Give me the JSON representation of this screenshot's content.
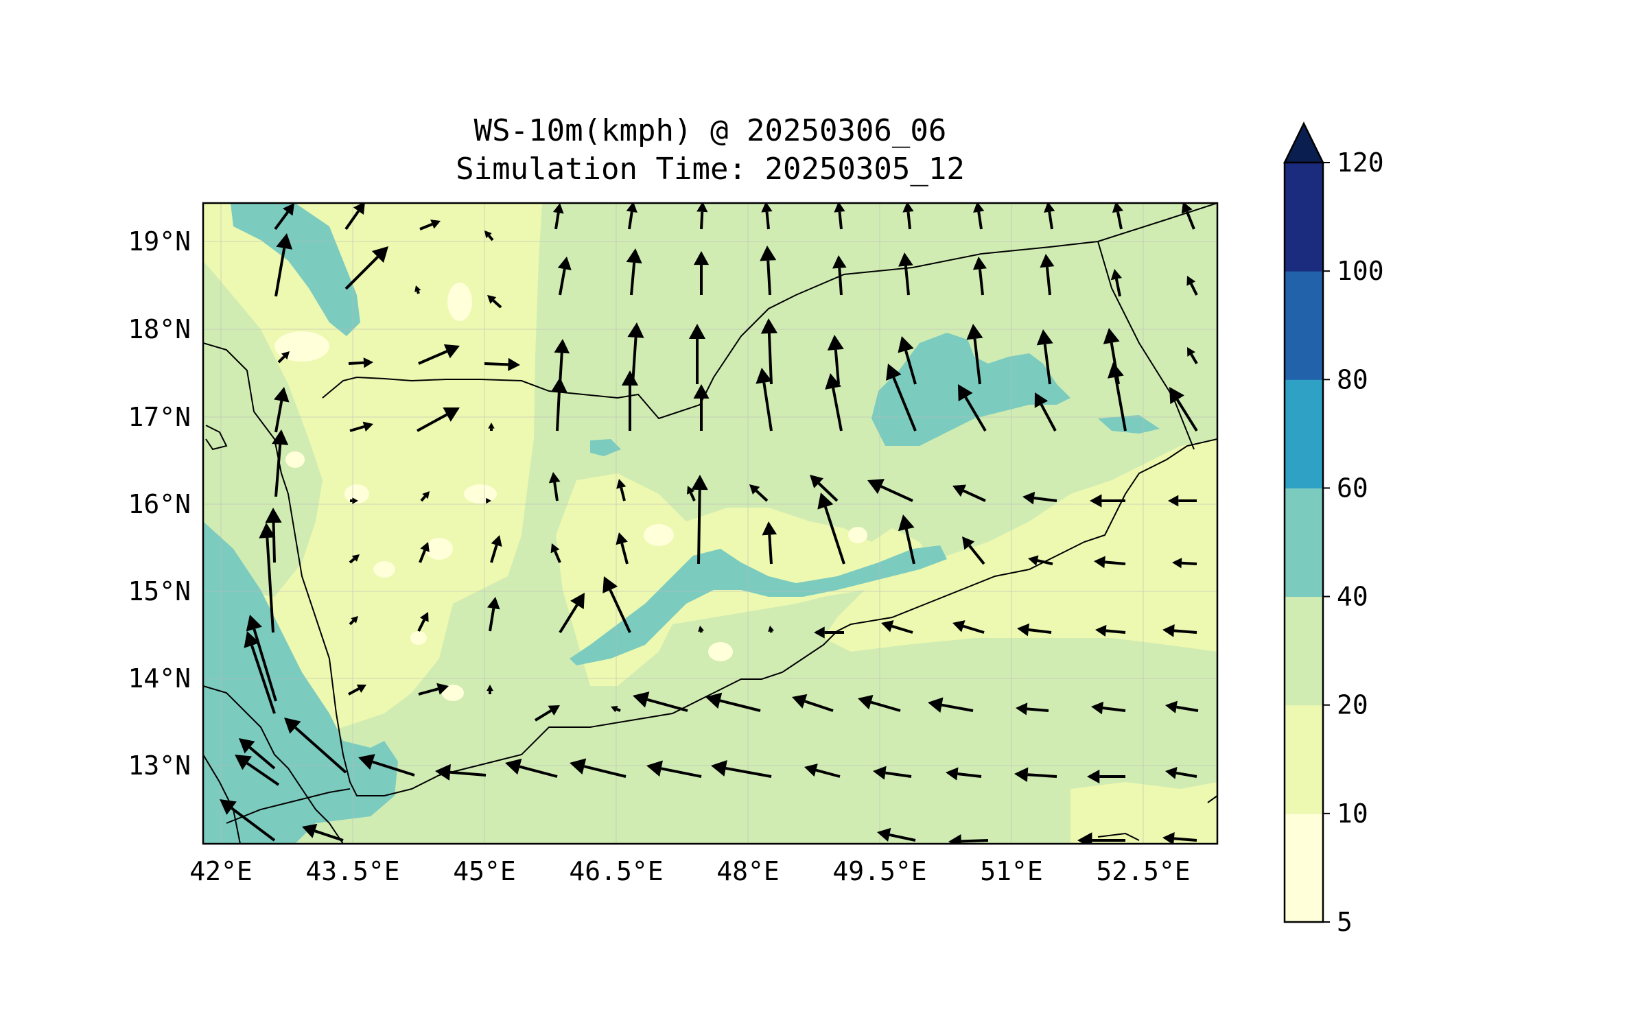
{
  "title": {
    "line1": "WS-10m(kmph) @ 20250306_06",
    "line2": "Simulation Time: 20250305_12"
  },
  "map": {
    "lon_range": [
      41.7,
      53.2
    ],
    "lat_range": [
      12.1,
      19.45
    ],
    "lon_ticks": [
      "42°E",
      "43.5°E",
      "45°E",
      "46.5°E",
      "48°E",
      "49.5°E",
      "51°E",
      "52.5°E"
    ],
    "lon_tick_values": [
      42,
      43.5,
      45,
      46.5,
      48,
      49.5,
      51,
      52.5
    ],
    "lat_ticks": [
      "19°N",
      "18°N",
      "17°N",
      "16°N",
      "15°N",
      "14°N",
      "13°N"
    ],
    "lat_tick_values": [
      19,
      18,
      17,
      16,
      15,
      14,
      13
    ],
    "gridlines": true,
    "coastlines": true,
    "borders": true,
    "vectors": "wind arrows (10m wind direction)"
  },
  "colorbar": {
    "levels": [
      "5",
      "10",
      "20",
      "40",
      "60",
      "80",
      "100",
      "120"
    ],
    "colors": [
      "#ffffd9",
      "#edf8b1",
      "#d0ecb3",
      "#7ccbbf",
      "#2ea1c5",
      "#2162ab",
      "#1b2b7e"
    ],
    "extend_color": "#0a1e50",
    "extend": "max"
  }
}
